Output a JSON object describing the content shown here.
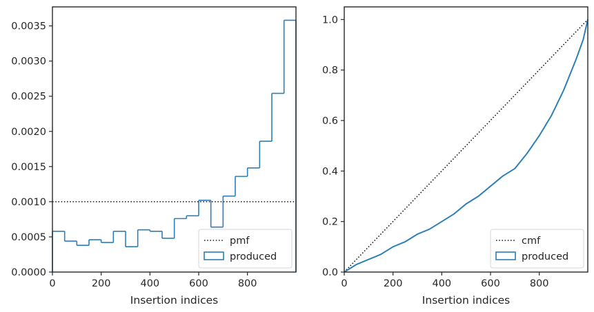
{
  "chart_data": [
    {
      "type": "step",
      "xlabel": "Insertion indices",
      "ylabel": "",
      "xlim": [
        0,
        999
      ],
      "ylim": [
        0,
        0.00377
      ],
      "xticks": [
        0,
        200,
        400,
        600,
        800
      ],
      "yticks": [
        0.0,
        0.0005,
        0.001,
        0.0015,
        0.002,
        0.0025,
        0.003,
        0.0035
      ],
      "ytick_labels": [
        "0.0000",
        "0.0005",
        "0.0010",
        "0.0015",
        "0.0020",
        "0.0025",
        "0.0030",
        "0.0035"
      ],
      "legend": {
        "placement": "lower-right",
        "entries": [
          {
            "label": "pmf",
            "style": "dotted-line"
          },
          {
            "label": "produced",
            "style": "step-patch"
          }
        ]
      },
      "reference_line": {
        "name": "pmf",
        "y": 0.001
      },
      "series": [
        {
          "name": "produced",
          "bin_edges": [
            0,
            50,
            100,
            150,
            200,
            250,
            300,
            350,
            400,
            450,
            500,
            550,
            600,
            650,
            700,
            750,
            800,
            850,
            900,
            950,
            999
          ],
          "values": [
            0.00058,
            0.00044,
            0.00038,
            0.00046,
            0.00042,
            0.00058,
            0.00036,
            0.0006,
            0.00058,
            0.00048,
            0.00076,
            0.0008,
            0.00102,
            0.00064,
            0.00108,
            0.00136,
            0.00148,
            0.00186,
            0.00254,
            0.00358
          ]
        }
      ],
      "colors": {
        "produced": "#2a7fb8",
        "pmf": "#1a1a1a"
      }
    },
    {
      "type": "line",
      "xlabel": "Insertion indices",
      "ylabel": "",
      "xlim": [
        0,
        999
      ],
      "ylim": [
        0,
        1.05
      ],
      "xticks": [
        0,
        200,
        400,
        600,
        800
      ],
      "yticks": [
        0.0,
        0.2,
        0.4,
        0.6,
        0.8,
        1.0
      ],
      "ytick_labels": [
        "0.0",
        "0.2",
        "0.4",
        "0.6",
        "0.8",
        "1.0"
      ],
      "legend": {
        "placement": "lower-right",
        "entries": [
          {
            "label": "cmf",
            "style": "dotted-line"
          },
          {
            "label": "produced",
            "style": "step-patch"
          }
        ]
      },
      "reference_line": {
        "name": "cmf",
        "points": [
          [
            0,
            0
          ],
          [
            999,
            1.0
          ]
        ]
      },
      "series": [
        {
          "name": "produced",
          "x": [
            0,
            50,
            100,
            150,
            200,
            250,
            300,
            350,
            400,
            450,
            500,
            550,
            600,
            650,
            700,
            750,
            800,
            850,
            900,
            950,
            980,
            999
          ],
          "y": [
            0,
            0.03,
            0.05,
            0.07,
            0.1,
            0.12,
            0.15,
            0.17,
            0.2,
            0.23,
            0.27,
            0.3,
            0.34,
            0.38,
            0.41,
            0.47,
            0.54,
            0.62,
            0.72,
            0.84,
            0.92,
            1.0
          ]
        }
      ],
      "colors": {
        "produced": "#2a7fb8",
        "cmf": "#1a1a1a"
      }
    }
  ]
}
